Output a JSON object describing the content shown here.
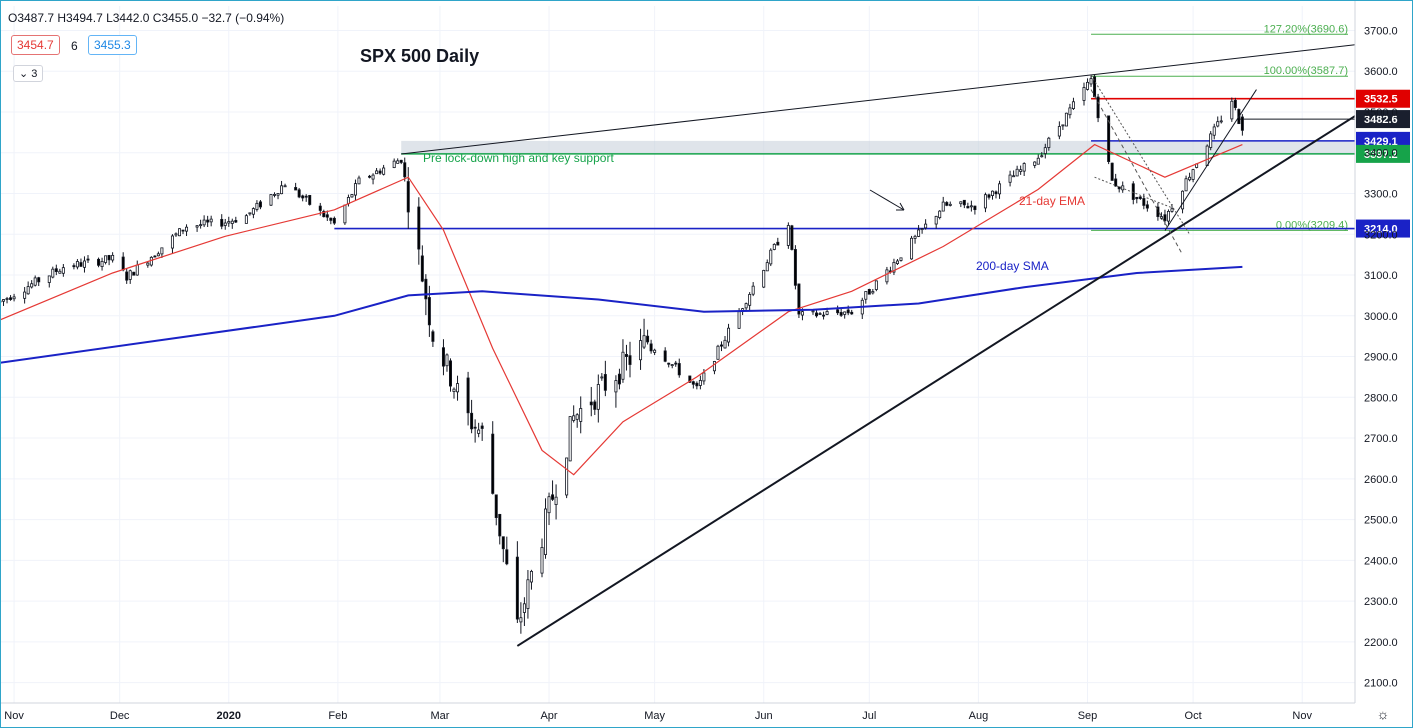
{
  "header": {
    "ohlc": "O3487.7  H3494.7  L3442.0  C3455.0  −32.7 (−0.94%)",
    "ma_value_1": "3454.7",
    "ma_length": "6",
    "ma_value_2": "3455.3",
    "collapse_count": "3"
  },
  "colors": {
    "up": "#ffffff",
    "down": "#000000",
    "ema": "#e53935",
    "sma": "#1a22c6",
    "resistance": "#e00000",
    "support_green": "#16a34a",
    "support_blue": "#1a22c6",
    "fib": "#4caf50"
  },
  "chart_data": {
    "type": "candlestick",
    "title": "SPX 500 Daily",
    "y_range": [
      2050,
      3760
    ],
    "y_ticks": [
      2100,
      2200,
      2300,
      2400,
      2500,
      2600,
      2700,
      2800,
      2900,
      3000,
      3100,
      3200,
      3300,
      3400,
      3500,
      3600,
      3700
    ],
    "x_ticks": [
      "Nov",
      "Dec",
      "2020",
      "Feb",
      "Mar",
      "Apr",
      "May",
      "Jun",
      "Jul",
      "Aug",
      "Sep",
      "Oct",
      "Nov"
    ],
    "date_range": [
      "2019-10-28",
      "2020-11-16"
    ],
    "anchors": [
      [
        "2019-10-28",
        3035
      ],
      [
        "2019-11-15",
        3120
      ],
      [
        "2019-11-29",
        3140
      ],
      [
        "2019-12-03",
        3095
      ],
      [
        "2019-12-20",
        3220
      ],
      [
        "2019-12-31",
        3230
      ],
      [
        "2020-01-06",
        3245
      ],
      [
        "2020-01-17",
        3325
      ],
      [
        "2020-01-31",
        3225
      ],
      [
        "2020-02-07",
        3330
      ],
      [
        "2020-02-19",
        3385
      ],
      [
        "2020-02-28",
        2955
      ],
      [
        "2020-03-09",
        2750
      ],
      [
        "2020-03-13",
        2710
      ],
      [
        "2020-03-23",
        2235
      ],
      [
        "2020-04-08",
        2750
      ],
      [
        "2020-04-29",
        2940
      ],
      [
        "2020-05-13",
        2820
      ],
      [
        "2020-06-08",
        3230
      ],
      [
        "2020-06-11",
        3000
      ],
      [
        "2020-06-26",
        3010
      ],
      [
        "2020-07-22",
        3270
      ],
      [
        "2020-07-31",
        3270
      ],
      [
        "2020-08-18",
        3390
      ],
      [
        "2020-09-02",
        3580
      ],
      [
        "2020-09-08",
        3330
      ],
      [
        "2020-09-23",
        3240
      ],
      [
        "2020-10-12",
        3530
      ],
      [
        "2020-10-15",
        3455
      ]
    ],
    "last_candle": {
      "date": "2020-10-15",
      "open": 3487.7,
      "high": 3494.7,
      "low": 3442.0,
      "close": 3455.0
    },
    "ema21_label": "21-day EMA",
    "sma200_label": "200-day SMA",
    "ema21": [
      [
        "2019-10-28",
        2990
      ],
      [
        "2019-11-29",
        3105
      ],
      [
        "2019-12-31",
        3195
      ],
      [
        "2020-01-31",
        3260
      ],
      [
        "2020-02-21",
        3340
      ],
      [
        "2020-03-02",
        3210
      ],
      [
        "2020-03-16",
        2920
      ],
      [
        "2020-03-30",
        2670
      ],
      [
        "2020-04-08",
        2610
      ],
      [
        "2020-04-22",
        2740
      ],
      [
        "2020-05-13",
        2850
      ],
      [
        "2020-06-08",
        3010
      ],
      [
        "2020-06-26",
        3060
      ],
      [
        "2020-07-22",
        3170
      ],
      [
        "2020-08-18",
        3310
      ],
      [
        "2020-09-03",
        3420
      ],
      [
        "2020-09-23",
        3340
      ],
      [
        "2020-10-15",
        3420
      ]
    ],
    "sma200": [
      [
        "2019-10-28",
        2885
      ],
      [
        "2020-01-31",
        3000
      ],
      [
        "2020-02-21",
        3050
      ],
      [
        "2020-03-13",
        3060
      ],
      [
        "2020-04-15",
        3040
      ],
      [
        "2020-05-15",
        3010
      ],
      [
        "2020-06-15",
        3015
      ],
      [
        "2020-07-15",
        3030
      ],
      [
        "2020-08-14",
        3070
      ],
      [
        "2020-09-15",
        3105
      ],
      [
        "2020-10-15",
        3120
      ]
    ],
    "levels": [
      {
        "value": 3532.5,
        "label": "3532.5",
        "from": "2020-09-02",
        "style": "red"
      },
      {
        "value": 3482.6,
        "label": "3482.6",
        "from": "2020-10-14",
        "style": "black"
      },
      {
        "value": 3429.1,
        "label": "3429.1",
        "from": "2020-09-02",
        "style": "blue"
      },
      {
        "value": 3397.2,
        "label": "3397.2",
        "from": "2020-02-19",
        "style": "green"
      },
      {
        "value": 3214.0,
        "label": "3214.0",
        "from": "2020-01-31",
        "style": "blue"
      }
    ],
    "fib_levels": [
      {
        "value": 3690.6,
        "label": "127.20%(3690.6)"
      },
      {
        "value": 3587.7,
        "label": "100.00%(3587.7)"
      },
      {
        "value": 3209.4,
        "label": "0.00%(3209.4)"
      }
    ],
    "support_zone": {
      "low": 3397.2,
      "high": 3429.1,
      "from": "2020-02-19"
    },
    "annotations": [
      {
        "text": "Pre lock-down high and key support",
        "color": "green"
      },
      {
        "text": "21-day EMA",
        "color": "red"
      },
      {
        "text": "200-day SMA",
        "color": "blue"
      }
    ],
    "trendlines": [
      {
        "from": [
          "2020-02-19",
          3397
        ],
        "to": [
          "2020-11-16",
          3665
        ]
      },
      {
        "from": [
          "2020-03-23",
          2190
        ],
        "to": [
          "2020-11-16",
          3490
        ]
      }
    ]
  }
}
